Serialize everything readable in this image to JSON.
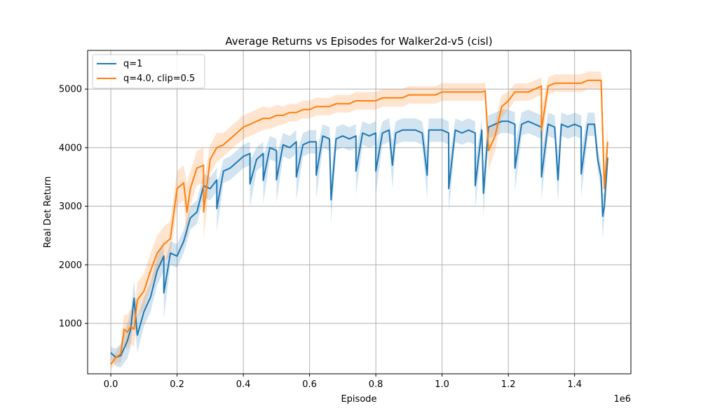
{
  "chart_data": {
    "type": "line",
    "title": "Average Returns vs Episodes for Walker2d-v5 (cisl)",
    "xlabel": "Episode",
    "ylabel": "Real Det Return",
    "x_offset_label": "1e6",
    "xlim": [
      -70000,
      1570000
    ],
    "ylim": [
      140,
      5660
    ],
    "xticks": [
      0,
      200000,
      400000,
      600000,
      800000,
      1000000,
      1200000,
      1400000
    ],
    "xtick_labels": [
      "0.0",
      "0.2",
      "0.4",
      "0.6",
      "0.8",
      "1.0",
      "1.2",
      "1.4"
    ],
    "yticks": [
      1000,
      2000,
      3000,
      4000,
      5000
    ],
    "ytick_labels": [
      "1000",
      "2000",
      "3000",
      "4000",
      "5000"
    ],
    "grid": true,
    "legend_position": "top-left",
    "series": [
      {
        "name": "q=1",
        "color": "#1f77b4",
        "band_alpha": 0.2,
        "x": [
          0,
          15000,
          30000,
          50000,
          60000,
          70000,
          80000,
          100000,
          120000,
          140000,
          160000,
          180000,
          200000,
          220000,
          240000,
          260000,
          280000,
          300000,
          320000,
          340000,
          360000,
          380000,
          400000,
          420000,
          440000,
          460000,
          480000,
          500000,
          520000,
          540000,
          560000,
          580000,
          600000,
          620000,
          640000,
          660000,
          680000,
          700000,
          720000,
          740000,
          760000,
          780000,
          800000,
          820000,
          840000,
          860000,
          880000,
          900000,
          920000,
          940000,
          960000,
          980000,
          1000000,
          1020000,
          1040000,
          1060000,
          1080000,
          1100000,
          1120000,
          1140000,
          1160000,
          1180000,
          1200000,
          1220000,
          1240000,
          1260000,
          1280000,
          1300000,
          1320000,
          1340000,
          1360000,
          1380000,
          1400000,
          1420000,
          1440000,
          1460000,
          1470000,
          1480000,
          1490000,
          1500000
        ],
        "y": [
          500,
          420,
          450,
          700,
          900,
          1430,
          800,
          1200,
          1450,
          1900,
          2150,
          2200,
          2150,
          2400,
          2800,
          2900,
          3350,
          3300,
          3450,
          3600,
          3650,
          3750,
          3850,
          3900,
          3800,
          3900,
          4000,
          3950,
          4050,
          4000,
          4100,
          4050,
          4100,
          4100,
          4200,
          4150,
          4150,
          4200,
          4150,
          4200,
          4250,
          4200,
          4250,
          4250,
          4300,
          4250,
          4300,
          4300,
          4300,
          4250,
          4300,
          4300,
          4300,
          4250,
          4300,
          4250,
          4300,
          4250,
          4300,
          4350,
          4400,
          4450,
          4450,
          4400,
          4400,
          4450,
          4400,
          4350,
          4400,
          4350,
          4400,
          4350,
          4400,
          4350,
          4400,
          4400,
          3800,
          3500,
          3000,
          3830
        ],
        "dips": [
          [
            160000,
            1520
          ],
          [
            320000,
            2960
          ],
          [
            420000,
            3380
          ],
          [
            460000,
            3440
          ],
          [
            500000,
            3450
          ],
          [
            560000,
            3500
          ],
          [
            620000,
            3530
          ],
          [
            665000,
            3110
          ],
          [
            740000,
            3600
          ],
          [
            800000,
            3600
          ],
          [
            850000,
            3700
          ],
          [
            955000,
            3530
          ],
          [
            1020000,
            3300
          ],
          [
            1100000,
            3350
          ],
          [
            1125000,
            3220
          ],
          [
            1220000,
            3650
          ],
          [
            1300000,
            3500
          ],
          [
            1350000,
            3450
          ],
          [
            1420000,
            3550
          ],
          [
            1485000,
            2830
          ]
        ],
        "band_half_width": [
          100,
          150,
          200,
          300,
          300,
          300,
          300,
          250,
          250,
          250,
          250,
          200,
          200,
          200,
          200,
          200,
          200,
          200,
          200,
          200,
          200,
          200,
          200,
          200,
          200,
          200,
          200,
          200,
          200,
          200,
          200,
          200,
          200,
          200,
          200,
          200,
          200,
          200,
          200,
          200,
          200,
          200,
          200,
          200,
          200,
          200,
          200,
          200,
          200,
          200,
          200,
          200,
          200,
          200,
          200,
          200,
          200,
          200,
          200,
          200,
          200,
          200,
          200,
          200,
          200,
          200,
          200,
          200,
          200,
          200,
          200,
          200,
          200,
          200,
          200,
          200,
          200,
          200,
          200,
          200
        ]
      },
      {
        "name": "q=4.0, clip=0.5",
        "color": "#ff7f0e",
        "band_alpha": 0.2,
        "x": [
          0,
          15000,
          30000,
          40000,
          50000,
          60000,
          70000,
          80000,
          100000,
          120000,
          140000,
          160000,
          180000,
          200000,
          220000,
          240000,
          260000,
          280000,
          300000,
          320000,
          340000,
          360000,
          380000,
          400000,
          420000,
          440000,
          460000,
          480000,
          500000,
          520000,
          540000,
          560000,
          580000,
          600000,
          620000,
          640000,
          660000,
          680000,
          700000,
          720000,
          740000,
          760000,
          780000,
          800000,
          820000,
          840000,
          860000,
          880000,
          900000,
          920000,
          940000,
          960000,
          980000,
          1000000,
          1020000,
          1040000,
          1060000,
          1080000,
          1100000,
          1120000,
          1130000,
          1140000,
          1160000,
          1180000,
          1200000,
          1220000,
          1240000,
          1260000,
          1280000,
          1300000,
          1320000,
          1340000,
          1360000,
          1380000,
          1400000,
          1420000,
          1440000,
          1460000,
          1480000,
          1490000,
          1500000
        ],
        "y": [
          300,
          420,
          480,
          900,
          850,
          950,
          900,
          1400,
          1550,
          1900,
          2200,
          2350,
          2450,
          3300,
          3400,
          3300,
          3650,
          3700,
          3800,
          4000,
          4050,
          4150,
          4250,
          4350,
          4400,
          4450,
          4500,
          4500,
          4550,
          4550,
          4600,
          4600,
          4650,
          4650,
          4700,
          4700,
          4700,
          4750,
          4750,
          4750,
          4800,
          4800,
          4800,
          4800,
          4850,
          4850,
          4850,
          4850,
          4900,
          4900,
          4900,
          4900,
          4900,
          4950,
          4950,
          4950,
          4950,
          4950,
          4950,
          4950,
          4970,
          4000,
          4200,
          4700,
          4800,
          4950,
          4950,
          4950,
          5000,
          5050,
          5050,
          5100,
          5100,
          5100,
          5100,
          5100,
          5150,
          5150,
          5150,
          3300,
          4100
        ],
        "dips": [
          [
            230000,
            2900
          ],
          [
            280000,
            2900
          ],
          [
            1140000,
            3950
          ],
          [
            1300000,
            4300
          ],
          [
            1490000,
            3300
          ]
        ],
        "band_half_width": [
          80,
          100,
          150,
          250,
          300,
          300,
          300,
          300,
          300,
          300,
          300,
          300,
          300,
          300,
          300,
          300,
          300,
          300,
          250,
          250,
          200,
          200,
          200,
          200,
          200,
          200,
          200,
          180,
          180,
          150,
          150,
          150,
          150,
          150,
          150,
          150,
          150,
          150,
          150,
          150,
          150,
          150,
          150,
          150,
          150,
          150,
          150,
          150,
          150,
          150,
          150,
          150,
          150,
          150,
          150,
          150,
          150,
          150,
          150,
          150,
          150,
          300,
          250,
          200,
          150,
          150,
          150,
          150,
          150,
          150,
          150,
          150,
          150,
          150,
          150,
          150,
          150,
          150,
          150,
          600,
          300
        ]
      }
    ]
  }
}
